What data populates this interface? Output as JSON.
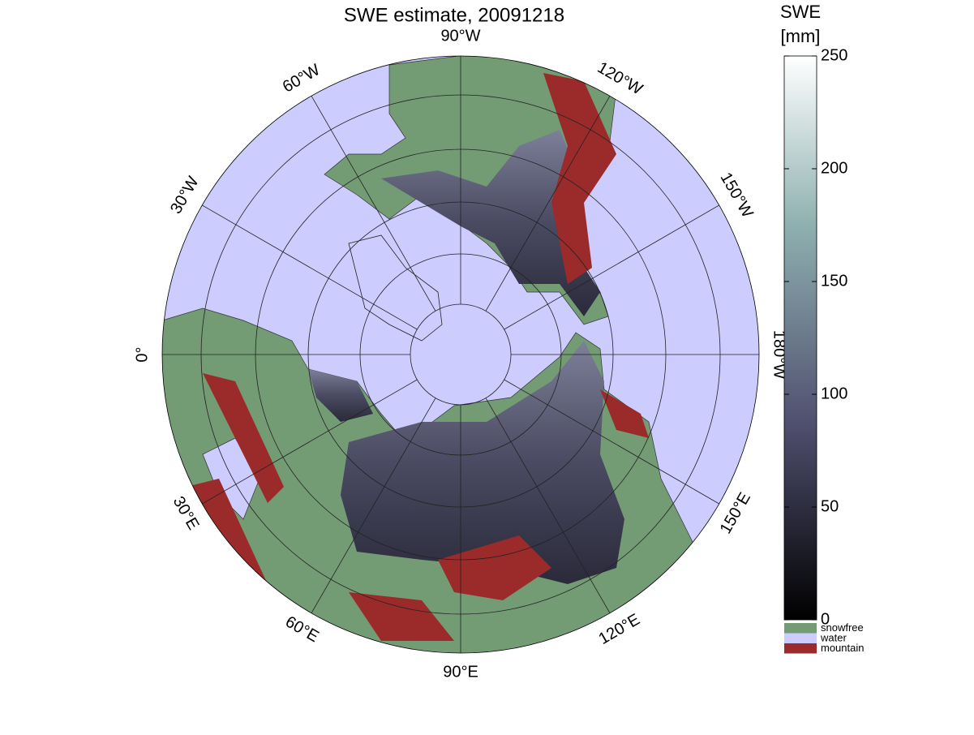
{
  "title": "SWE estimate, 20091218",
  "meridian_labels": [
    {
      "value": -90,
      "label": "90°W"
    },
    {
      "value": -120,
      "label": "120°W"
    },
    {
      "value": -150,
      "label": "150°W"
    },
    {
      "value": -180,
      "label": "180°W"
    },
    {
      "value": 150,
      "label": "150°E"
    },
    {
      "value": 120,
      "label": "120°E"
    },
    {
      "value": 90,
      "label": "90°E"
    },
    {
      "value": 60,
      "label": "60°E"
    },
    {
      "value": 30,
      "label": "30°E"
    },
    {
      "value": 0,
      "label": "0°"
    },
    {
      "value": -30,
      "label": "30°W"
    },
    {
      "value": -60,
      "label": "60°W"
    }
  ],
  "colorbar": {
    "title": [
      "SWE",
      "[mm]"
    ],
    "lim": [
      0,
      250
    ],
    "ticks": [
      0,
      50,
      100,
      150,
      200,
      250
    ]
  },
  "legend": [
    {
      "label": "snowfree",
      "color": "#739b74"
    },
    {
      "label": "water",
      "color": "#ccccff"
    },
    {
      "label": "mountain",
      "color": "#9b2b2b"
    }
  ]
}
